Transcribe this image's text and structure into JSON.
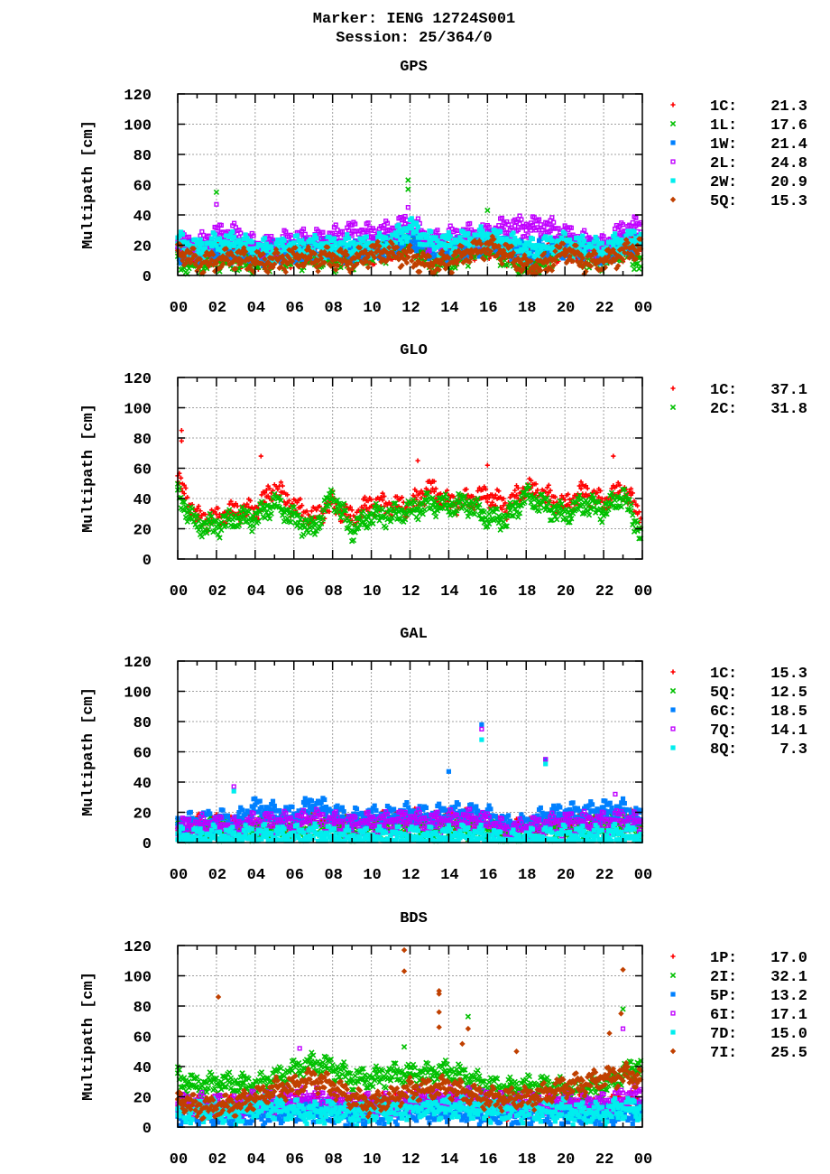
{
  "title_line1": "Marker: IENG 12724S001",
  "title_line2": "Session: 25/364/0",
  "chart_data": [
    {
      "type": "scatter",
      "title": "GPS",
      "ylabel": "Multipath [cm]",
      "xlim": [
        0,
        24
      ],
      "ylim": [
        0,
        120
      ],
      "yticks": [
        0,
        20,
        40,
        60,
        80,
        100,
        120
      ],
      "xtick_labels": [
        "00",
        "02",
        "04",
        "06",
        "08",
        "10",
        "12",
        "14",
        "16",
        "18",
        "20",
        "22",
        "00"
      ],
      "grid": true,
      "legend_position": "right",
      "x_hours": [
        0,
        1,
        2,
        3,
        4,
        5,
        6,
        7,
        8,
        9,
        10,
        11,
        12,
        13,
        14,
        15,
        16,
        17,
        18,
        19,
        20,
        21,
        22,
        23,
        24
      ],
      "series": [
        {
          "name": "1C",
          "legend": "21.3",
          "color": "#ff0000",
          "marker": "plus",
          "values": [
            18,
            15,
            18,
            16,
            15,
            16,
            17,
            18,
            17,
            16,
            18,
            20,
            24,
            18,
            17,
            20,
            22,
            18,
            14,
            17,
            20,
            17,
            16,
            20,
            22
          ],
          "outliers": []
        },
        {
          "name": "1L",
          "legend": "17.6",
          "color": "#00c000",
          "marker": "cross",
          "values": [
            12,
            10,
            15,
            12,
            12,
            14,
            15,
            15,
            13,
            14,
            18,
            20,
            25,
            12,
            12,
            18,
            22,
            15,
            8,
            12,
            25,
            15,
            14,
            20,
            12
          ],
          "outliers": [
            [
              2.0,
              55
            ],
            [
              11.9,
              63
            ],
            [
              11.9,
              57
            ],
            [
              16.0,
              43
            ]
          ]
        },
        {
          "name": "1W",
          "legend": "21.4",
          "color": "#0080ff",
          "marker": "square",
          "values": [
            20,
            18,
            20,
            19,
            18,
            18,
            19,
            20,
            20,
            18,
            20,
            22,
            28,
            22,
            20,
            22,
            25,
            22,
            18,
            20,
            22,
            20,
            18,
            22,
            24
          ],
          "outliers": []
        },
        {
          "name": "2L",
          "legend": "24.8",
          "color": "#c000ff",
          "marker": "open-square",
          "values": [
            25,
            22,
            30,
            30,
            22,
            23,
            27,
            26,
            28,
            32,
            30,
            32,
            38,
            25,
            28,
            30,
            30,
            35,
            35,
            35,
            30,
            25,
            22,
            33,
            35
          ],
          "outliers": [
            [
              2.0,
              47
            ],
            [
              11.9,
              45
            ]
          ]
        },
        {
          "name": "2W",
          "legend": "20.9",
          "color": "#00eeee",
          "marker": "square",
          "values": [
            25,
            20,
            24,
            25,
            20,
            20,
            22,
            22,
            22,
            22,
            22,
            25,
            35,
            25,
            24,
            26,
            28,
            25,
            20,
            22,
            24,
            22,
            20,
            25,
            28
          ],
          "outliers": []
        },
        {
          "name": "5Q",
          "legend": "15.3",
          "color": "#c04000",
          "marker": "diamond",
          "values": [
            20,
            12,
            12,
            15,
            12,
            12,
            15,
            14,
            15,
            12,
            18,
            18,
            15,
            10,
            12,
            18,
            22,
            18,
            8,
            10,
            20,
            12,
            12,
            18,
            22
          ],
          "outliers": []
        }
      ]
    },
    {
      "type": "scatter",
      "title": "GLO",
      "ylabel": "Multipath [cm]",
      "xlim": [
        0,
        24
      ],
      "ylim": [
        0,
        120
      ],
      "yticks": [
        0,
        20,
        40,
        60,
        80,
        100,
        120
      ],
      "xtick_labels": [
        "00",
        "02",
        "04",
        "06",
        "08",
        "10",
        "12",
        "14",
        "16",
        "18",
        "20",
        "22",
        "00"
      ],
      "grid": true,
      "legend_position": "right",
      "x_hours": [
        0,
        1,
        2,
        3,
        4,
        5,
        6,
        7,
        8,
        9,
        10,
        11,
        12,
        13,
        14,
        15,
        16,
        17,
        18,
        19,
        20,
        21,
        22,
        23,
        24
      ],
      "series": [
        {
          "name": "1C",
          "legend": "37.1",
          "color": "#ff0000",
          "marker": "plus",
          "values": [
            55,
            30,
            30,
            35,
            35,
            50,
            38,
            30,
            40,
            30,
            40,
            38,
            38,
            50,
            40,
            42,
            45,
            38,
            50,
            45,
            38,
            48,
            40,
            50,
            30
          ],
          "outliers": [
            [
              0.2,
              85
            ],
            [
              0.2,
              78
            ],
            [
              4.3,
              68
            ],
            [
              12.4,
              65
            ],
            [
              16.0,
              62
            ],
            [
              22.5,
              68
            ]
          ]
        },
        {
          "name": "2C",
          "legend": "31.8",
          "color": "#00c000",
          "marker": "cross",
          "values": [
            45,
            25,
            25,
            30,
            30,
            40,
            30,
            22,
            45,
            22,
            32,
            32,
            35,
            40,
            38,
            40,
            30,
            30,
            45,
            38,
            32,
            40,
            35,
            45,
            18
          ],
          "outliers": []
        }
      ]
    },
    {
      "type": "scatter",
      "title": "GAL",
      "ylabel": "Multipath [cm]",
      "xlim": [
        0,
        24
      ],
      "ylim": [
        0,
        120
      ],
      "yticks": [
        0,
        20,
        40,
        60,
        80,
        100,
        120
      ],
      "xtick_labels": [
        "00",
        "02",
        "04",
        "06",
        "08",
        "10",
        "12",
        "14",
        "16",
        "18",
        "20",
        "22",
        "00"
      ],
      "grid": true,
      "legend_position": "right",
      "x_hours": [
        0,
        1,
        2,
        3,
        4,
        5,
        6,
        7,
        8,
        9,
        10,
        11,
        12,
        13,
        14,
        15,
        16,
        17,
        18,
        19,
        20,
        21,
        22,
        23,
        24
      ],
      "series": [
        {
          "name": "1C",
          "legend": "15.3",
          "color": "#ff0000",
          "marker": "plus",
          "values": [
            12,
            14,
            15,
            12,
            15,
            14,
            14,
            18,
            16,
            14,
            16,
            16,
            18,
            16,
            17,
            18,
            16,
            10,
            12,
            14,
            15,
            16,
            16,
            18,
            16
          ],
          "outliers": []
        },
        {
          "name": "5Q",
          "legend": "12.5",
          "color": "#00c000",
          "marker": "cross",
          "values": [
            10,
            12,
            12,
            10,
            12,
            12,
            12,
            14,
            13,
            11,
            12,
            13,
            14,
            12,
            13,
            14,
            12,
            8,
            10,
            12,
            12,
            13,
            12,
            14,
            12
          ],
          "outliers": []
        },
        {
          "name": "6C",
          "legend": "18.5",
          "color": "#0080ff",
          "marker": "square",
          "values": [
            15,
            16,
            18,
            16,
            26,
            22,
            20,
            28,
            22,
            18,
            20,
            20,
            22,
            20,
            22,
            22,
            20,
            14,
            14,
            20,
            22,
            22,
            24,
            24,
            18
          ],
          "outliers": [
            [
              14.0,
              47
            ],
            [
              15.7,
              78
            ],
            [
              19.0,
              55
            ]
          ]
        },
        {
          "name": "7Q",
          "legend": "14.1",
          "color": "#c000ff",
          "marker": "open-square",
          "values": [
            12,
            14,
            14,
            12,
            16,
            16,
            16,
            18,
            16,
            14,
            16,
            16,
            18,
            16,
            17,
            18,
            16,
            10,
            12,
            14,
            16,
            16,
            16,
            18,
            14
          ],
          "outliers": [
            [
              15.7,
              75
            ],
            [
              19.0,
              55
            ],
            [
              2.9,
              37
            ],
            [
              22.6,
              32
            ]
          ]
        },
        {
          "name": "8Q",
          "legend": " 7.3",
          "color": "#00eeee",
          "marker": "square",
          "values": [
            6,
            6,
            7,
            6,
            8,
            7,
            7,
            8,
            7,
            5,
            6,
            6,
            7,
            6,
            7,
            8,
            6,
            3,
            5,
            6,
            7,
            7,
            7,
            8,
            6
          ],
          "outliers": [
            [
              15.7,
              68
            ],
            [
              19.0,
              52
            ],
            [
              2.9,
              34
            ]
          ]
        }
      ]
    },
    {
      "type": "scatter",
      "title": "BDS",
      "ylabel": "Multipath [cm]",
      "xlim": [
        0,
        24
      ],
      "ylim": [
        0,
        120
      ],
      "yticks": [
        0,
        20,
        40,
        60,
        80,
        100,
        120
      ],
      "xtick_labels": [
        "00",
        "02",
        "04",
        "06",
        "08",
        "10",
        "12",
        "14",
        "16",
        "18",
        "20",
        "22",
        "00"
      ],
      "grid": true,
      "legend_position": "right",
      "x_hours": [
        0,
        1,
        2,
        3,
        4,
        5,
        6,
        7,
        8,
        9,
        10,
        11,
        12,
        13,
        14,
        15,
        16,
        17,
        18,
        19,
        20,
        21,
        22,
        23,
        24
      ],
      "series": [
        {
          "name": "1P",
          "legend": "17.0",
          "color": "#ff0000",
          "marker": "plus",
          "values": [
            18,
            16,
            18,
            16,
            18,
            18,
            20,
            18,
            18,
            16,
            18,
            18,
            20,
            20,
            20,
            18,
            18,
            16,
            16,
            18,
            20,
            18,
            16,
            20,
            18
          ],
          "outliers": []
        },
        {
          "name": "2I",
          "legend": "32.1",
          "color": "#00c000",
          "marker": "cross",
          "values": [
            35,
            30,
            32,
            32,
            30,
            35,
            40,
            45,
            42,
            35,
            35,
            38,
            38,
            38,
            40,
            35,
            30,
            28,
            30,
            30,
            28,
            28,
            30,
            38,
            45
          ],
          "outliers": [
            [
              11.7,
              53
            ],
            [
              15.0,
              73
            ],
            [
              23.0,
              78
            ]
          ]
        },
        {
          "name": "5P",
          "legend": "13.2",
          "color": "#0080ff",
          "marker": "square",
          "values": [
            10,
            12,
            12,
            10,
            12,
            12,
            14,
            14,
            12,
            10,
            12,
            12,
            14,
            14,
            14,
            14,
            12,
            12,
            12,
            12,
            12,
            12,
            12,
            12,
            14
          ],
          "outliers": []
        },
        {
          "name": "6I",
          "legend": "17.1",
          "color": "#c000ff",
          "marker": "open-square",
          "values": [
            18,
            18,
            18,
            16,
            20,
            20,
            22,
            22,
            20,
            18,
            18,
            18,
            20,
            22,
            22,
            22,
            20,
            18,
            18,
            18,
            20,
            18,
            18,
            22,
            25
          ],
          "outliers": [
            [
              6.3,
              52
            ],
            [
              23.0,
              65
            ]
          ]
        },
        {
          "name": "7D",
          "legend": "15.0",
          "color": "#00eeee",
          "marker": "square",
          "values": [
            12,
            14,
            14,
            12,
            16,
            16,
            14,
            12,
            14,
            12,
            14,
            14,
            16,
            16,
            16,
            16,
            14,
            14,
            14,
            14,
            14,
            12,
            12,
            16,
            14
          ],
          "outliers": []
        },
        {
          "name": "7I",
          "legend": "25.5",
          "color": "#c04000",
          "marker": "diamond",
          "values": [
            22,
            16,
            16,
            18,
            22,
            28,
            30,
            35,
            30,
            22,
            18,
            22,
            28,
            28,
            30,
            25,
            22,
            22,
            22,
            25,
            30,
            32,
            35,
            38,
            35
          ],
          "outliers": [
            [
              2.1,
              86
            ],
            [
              11.7,
              117
            ],
            [
              11.7,
              103
            ],
            [
              13.5,
              90
            ],
            [
              13.5,
              88
            ],
            [
              13.5,
              76
            ],
            [
              13.5,
              66
            ],
            [
              14.7,
              55
            ],
            [
              15.0,
              65
            ],
            [
              17.5,
              50
            ],
            [
              22.3,
              62
            ],
            [
              22.9,
              75
            ],
            [
              23.0,
              104
            ]
          ]
        }
      ]
    }
  ]
}
